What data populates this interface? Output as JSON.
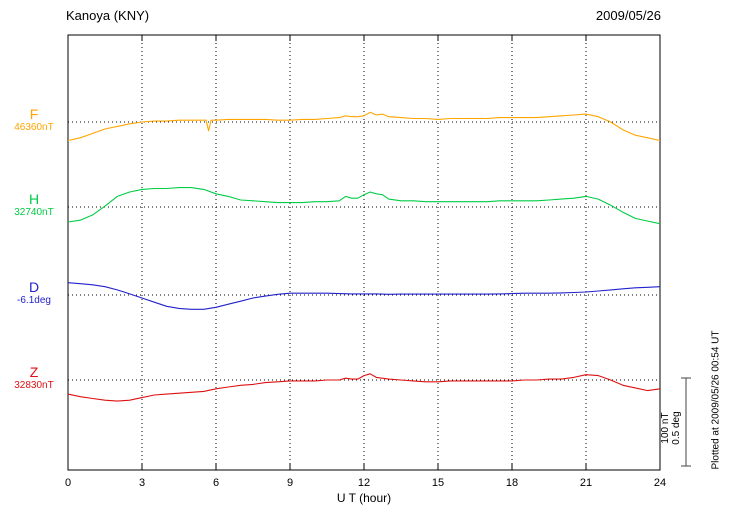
{
  "header": {
    "station": "Kanoya (KNY)",
    "date": "2009/05/26"
  },
  "footnote": "Plotted at 2009/05/26 00:54 UT",
  "scale_bar": {
    "label_nt": "100 nT",
    "label_deg": "0.5 deg"
  },
  "chart_data": {
    "type": "line",
    "title": "Kanoya (KNY) magnetogram",
    "xlabel": "U T (hour)",
    "x_range": [
      0,
      24
    ],
    "x_ticks": [
      0,
      3,
      6,
      9,
      12,
      15,
      18,
      21,
      24
    ],
    "grid": "dotted vertical lines every 3 hours; dotted horizontal baseline for each trace",
    "legend_position": "left labels per trace",
    "scale": {
      "nT_per_bar": 100,
      "deg_per_bar": 0.5
    },
    "series": [
      {
        "name": "F",
        "unit": "nT",
        "base_value": 46360,
        "base_label": "46360nT",
        "color": "#FFA500",
        "x": [
          0,
          0.5,
          1,
          1.5,
          2,
          2.5,
          3,
          3.5,
          4,
          4.5,
          5,
          5.5,
          5.6,
          5.7,
          5.8,
          6,
          6.5,
          7,
          7.5,
          8,
          8.5,
          9,
          9.5,
          10,
          10.5,
          11,
          11.25,
          11.5,
          11.75,
          12,
          12.25,
          12.5,
          12.75,
          13,
          13.5,
          14,
          14.5,
          15,
          15.5,
          16,
          16.5,
          17,
          17.5,
          18,
          18.5,
          19,
          19.5,
          20,
          20.5,
          21,
          21.5,
          22,
          22.5,
          23,
          23.5,
          24
        ],
        "offsets": [
          -21,
          -18,
          -13,
          -8,
          -5,
          -2,
          0,
          1,
          1,
          2,
          2,
          2,
          2,
          -10,
          2,
          2,
          3,
          3,
          3,
          3,
          2,
          2,
          3,
          3,
          4,
          5,
          7,
          6,
          6,
          7,
          11,
          8,
          9,
          6,
          5,
          4,
          4,
          3,
          4,
          4,
          4,
          4,
          5,
          5,
          5,
          5,
          6,
          7,
          8,
          9,
          6,
          0,
          -9,
          -15,
          -18,
          -21
        ]
      },
      {
        "name": "H",
        "unit": "nT",
        "base_value": 32740,
        "base_label": "32740nT",
        "color": "#00CC44",
        "x": [
          0,
          0.5,
          1,
          1.5,
          2,
          2.5,
          3,
          3.5,
          4,
          4.5,
          5,
          5.5,
          6,
          6.5,
          7,
          7.5,
          8,
          8.5,
          9,
          9.5,
          10,
          10.5,
          11,
          11.25,
          11.5,
          11.75,
          12,
          12.25,
          12.5,
          12.75,
          13,
          13.5,
          14,
          14.5,
          15,
          15.5,
          16,
          16.5,
          17,
          17.5,
          18,
          18.5,
          19,
          19.5,
          20,
          20.5,
          21,
          21.5,
          22,
          22.5,
          23,
          23.5,
          24
        ],
        "offsets": [
          -17,
          -15,
          -9,
          1,
          12,
          17,
          20,
          21,
          21,
          22,
          22,
          20,
          15,
          12,
          8,
          7,
          6,
          5,
          5,
          5,
          6,
          6,
          7,
          12,
          10,
          10,
          14,
          17,
          15,
          14,
          9,
          7,
          7,
          6,
          6,
          6,
          6,
          6,
          6,
          7,
          7,
          7,
          7,
          8,
          9,
          10,
          12,
          9,
          2,
          -6,
          -13,
          -16,
          -19
        ]
      },
      {
        "name": "D",
        "unit": "deg",
        "base_value": -6.1,
        "base_label": "-6.1deg",
        "color": "#2222CC",
        "x": [
          0,
          0.5,
          1,
          1.5,
          2,
          2.5,
          3,
          3.5,
          4,
          4.5,
          5,
          5.5,
          6,
          6.5,
          7,
          7.5,
          8,
          8.5,
          9,
          9.5,
          10,
          10.5,
          11,
          11.5,
          12,
          12.5,
          13,
          13.5,
          14,
          14.5,
          15,
          15.5,
          16,
          16.5,
          17,
          17.5,
          18,
          18.5,
          19,
          19.5,
          20,
          20.5,
          21,
          21.5,
          22,
          22.5,
          23,
          23.5,
          24
        ],
        "offsets": [
          0.07,
          0.064,
          0.058,
          0.047,
          0.029,
          0.006,
          -0.017,
          -0.041,
          -0.064,
          -0.076,
          -0.081,
          -0.081,
          -0.07,
          -0.052,
          -0.035,
          -0.017,
          -0.006,
          0.004,
          0.01,
          0.01,
          0.01,
          0.01,
          0.008,
          0.006,
          0.006,
          0.006,
          0.004,
          0.005,
          0.005,
          0.005,
          0.005,
          0.005,
          0.005,
          0.005,
          0.005,
          0.006,
          0.008,
          0.01,
          0.01,
          0.01,
          0.012,
          0.014,
          0.017,
          0.023,
          0.029,
          0.035,
          0.041,
          0.044,
          0.047
        ]
      },
      {
        "name": "Z",
        "unit": "nT",
        "base_value": 32830,
        "base_label": "32830nT",
        "color": "#DD1111",
        "x": [
          0,
          0.5,
          1,
          1.5,
          2,
          2.5,
          3,
          3.5,
          4,
          4.5,
          5,
          5.5,
          6,
          6.5,
          7,
          7.5,
          8,
          8.5,
          9,
          9.5,
          10,
          10.5,
          11,
          11.25,
          11.5,
          11.75,
          12,
          12.25,
          12.5,
          12.75,
          13,
          13.5,
          14,
          14.5,
          15,
          15.5,
          16,
          16.5,
          17,
          17.5,
          18,
          18.5,
          19,
          19.5,
          20,
          20.5,
          21,
          21.5,
          22,
          22.5,
          23,
          23.5,
          24
        ],
        "offsets": [
          -16,
          -19,
          -21,
          -23,
          -24,
          -23,
          -20,
          -17,
          -16,
          -15,
          -14,
          -13,
          -10,
          -8,
          -6,
          -5,
          -3,
          -2,
          -1,
          -1,
          -1,
          0,
          0,
          2,
          1,
          1,
          5,
          7,
          3,
          2,
          1,
          0,
          -1,
          -2,
          -2,
          -1,
          -1,
          -1,
          -1,
          -1,
          -1,
          0,
          0,
          1,
          1,
          3,
          6,
          5,
          0,
          -6,
          -9,
          -12,
          -10
        ]
      }
    ]
  }
}
